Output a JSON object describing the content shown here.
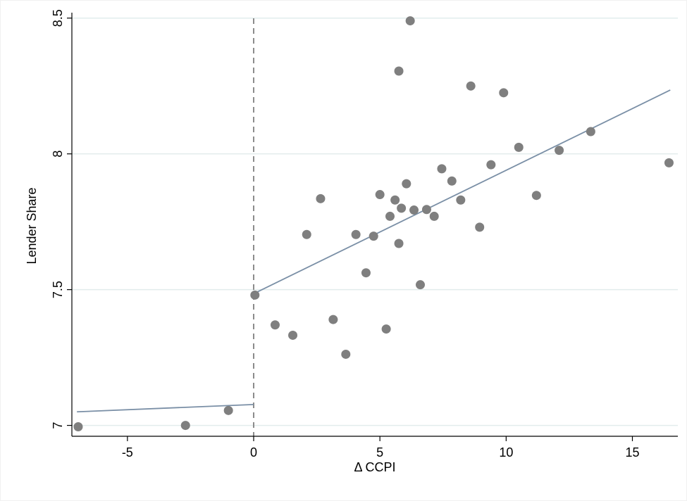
{
  "chart_data": {
    "type": "scatter",
    "title": "",
    "xlabel": "Δ CCPI",
    "ylabel": "Lender Share",
    "xlim": [
      -7.2,
      16.8
    ],
    "ylim": [
      6.96,
      8.52
    ],
    "x_ticks": [
      -5,
      0,
      5,
      10,
      15
    ],
    "x_tick_labels": [
      "-5",
      "0",
      "5",
      "10",
      "15"
    ],
    "y_ticks": [
      7,
      7.5,
      8,
      8.5
    ],
    "y_tick_labels": [
      "7",
      "7.5",
      "8",
      "8.5"
    ],
    "grid": "horizontal",
    "cutoff_x": 0,
    "points": [
      {
        "x": -6.95,
        "y": 6.995
      },
      {
        "x": -2.7,
        "y": 7.0
      },
      {
        "x": -1.0,
        "y": 7.055
      },
      {
        "x": 0.05,
        "y": 7.48
      },
      {
        "x": 0.85,
        "y": 7.37
      },
      {
        "x": 1.55,
        "y": 7.332
      },
      {
        "x": 2.1,
        "y": 7.703
      },
      {
        "x": 2.65,
        "y": 7.835
      },
      {
        "x": 3.15,
        "y": 7.39
      },
      {
        "x": 3.65,
        "y": 7.262
      },
      {
        "x": 4.05,
        "y": 7.703
      },
      {
        "x": 4.45,
        "y": 7.562
      },
      {
        "x": 4.75,
        "y": 7.697
      },
      {
        "x": 5.0,
        "y": 7.85
      },
      {
        "x": 5.25,
        "y": 7.355
      },
      {
        "x": 5.4,
        "y": 7.77
      },
      {
        "x": 5.6,
        "y": 7.83
      },
      {
        "x": 5.75,
        "y": 8.305
      },
      {
        "x": 5.75,
        "y": 7.67
      },
      {
        "x": 5.85,
        "y": 7.8
      },
      {
        "x": 6.05,
        "y": 7.89
      },
      {
        "x": 6.2,
        "y": 8.49
      },
      {
        "x": 6.35,
        "y": 7.793
      },
      {
        "x": 6.6,
        "y": 7.518
      },
      {
        "x": 6.85,
        "y": 7.795
      },
      {
        "x": 7.15,
        "y": 7.77
      },
      {
        "x": 7.45,
        "y": 7.945
      },
      {
        "x": 7.85,
        "y": 7.9
      },
      {
        "x": 8.2,
        "y": 7.83
      },
      {
        "x": 8.6,
        "y": 8.25
      },
      {
        "x": 8.95,
        "y": 7.73
      },
      {
        "x": 9.4,
        "y": 7.96
      },
      {
        "x": 9.9,
        "y": 8.225
      },
      {
        "x": 10.5,
        "y": 8.024
      },
      {
        "x": 11.2,
        "y": 7.847
      },
      {
        "x": 12.1,
        "y": 8.013
      },
      {
        "x": 13.35,
        "y": 8.082
      },
      {
        "x": 16.45,
        "y": 7.967
      }
    ],
    "fit_lines": [
      {
        "x": [
          -7.0,
          0.0
        ],
        "y": [
          7.05,
          7.077
        ]
      },
      {
        "x": [
          0.0,
          16.5
        ],
        "y": [
          7.485,
          8.235
        ]
      }
    ],
    "colors": {
      "points": "#7f7f7f",
      "fit_line": "#7a8fa6",
      "cutoff_line": "#8c8c8c",
      "grid": "#e2ecec",
      "axis": "#000000"
    }
  }
}
